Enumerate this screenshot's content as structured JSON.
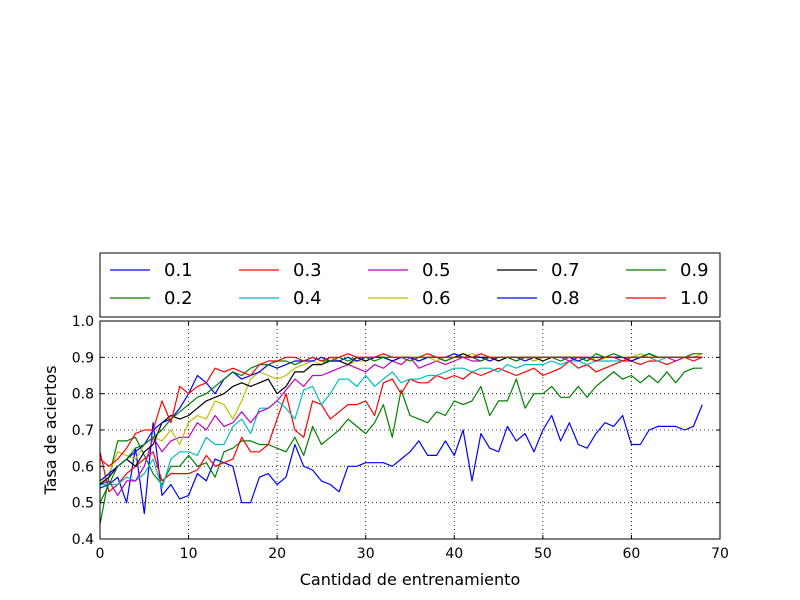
{
  "chart_data": {
    "type": "line",
    "xlabel": "Cantidad de entrenamiento",
    "ylabel": "Tasa de aciertos",
    "xlim": [
      0,
      70
    ],
    "ylim": [
      0.4,
      1.0
    ],
    "xticks": [
      "0",
      "10",
      "20",
      "30",
      "40",
      "50",
      "60",
      "70"
    ],
    "yticks": [
      "0.4",
      "0.5",
      "0.6",
      "0.7",
      "0.8",
      "0.9",
      "1.0"
    ],
    "grid": true,
    "legend": {
      "placement": "top",
      "columns": 5
    },
    "series": [
      {
        "name": "0.1",
        "color": "#0000ff",
        "values": [
          0.54,
          0.55,
          0.57,
          0.5,
          0.65,
          0.47,
          0.72,
          0.52,
          0.55,
          0.51,
          0.52,
          0.58,
          0.56,
          0.62,
          0.61,
          0.6,
          0.5,
          0.5,
          0.57,
          0.58,
          0.55,
          0.57,
          0.66,
          0.6,
          0.59,
          0.56,
          0.55,
          0.53,
          0.6,
          0.6,
          0.61,
          0.61,
          0.61,
          0.6,
          0.62,
          0.64,
          0.67,
          0.63,
          0.63,
          0.67,
          0.63,
          0.7,
          0.56,
          0.69,
          0.65,
          0.64,
          0.71,
          0.67,
          0.69,
          0.64,
          0.7,
          0.74,
          0.67,
          0.72,
          0.66,
          0.65,
          0.69,
          0.72,
          0.71,
          0.74,
          0.66,
          0.66,
          0.7,
          0.71,
          0.71,
          0.71,
          0.7,
          0.71,
          0.77
        ]
      },
      {
        "name": "0.2",
        "color": "#008000",
        "values": [
          0.44,
          0.57,
          0.67,
          0.67,
          0.68,
          0.63,
          0.58,
          0.55,
          0.6,
          0.6,
          0.63,
          0.6,
          0.61,
          0.57,
          0.64,
          0.65,
          0.67,
          0.67,
          0.66,
          0.66,
          0.65,
          0.64,
          0.68,
          0.63,
          0.71,
          0.66,
          0.68,
          0.7,
          0.73,
          0.71,
          0.69,
          0.72,
          0.77,
          0.68,
          0.81,
          0.74,
          0.73,
          0.72,
          0.75,
          0.74,
          0.78,
          0.77,
          0.78,
          0.82,
          0.74,
          0.78,
          0.78,
          0.84,
          0.76,
          0.8,
          0.8,
          0.82,
          0.79,
          0.79,
          0.82,
          0.79,
          0.82,
          0.84,
          0.86,
          0.84,
          0.85,
          0.83,
          0.85,
          0.83,
          0.86,
          0.83,
          0.86,
          0.87,
          0.87
        ]
      },
      {
        "name": "0.3",
        "color": "#ff0000",
        "values": [
          0.64,
          0.53,
          0.55,
          0.58,
          0.6,
          0.62,
          0.64,
          0.56,
          0.58,
          0.58,
          0.58,
          0.59,
          0.63,
          0.6,
          0.61,
          0.62,
          0.68,
          0.64,
          0.64,
          0.66,
          0.73,
          0.8,
          0.7,
          0.68,
          0.78,
          0.77,
          0.73,
          0.75,
          0.77,
          0.77,
          0.78,
          0.74,
          0.83,
          0.84,
          0.8,
          0.84,
          0.83,
          0.83,
          0.85,
          0.84,
          0.85,
          0.84,
          0.86,
          0.85,
          0.86,
          0.87,
          0.86,
          0.85,
          0.86,
          0.87,
          0.85,
          0.86,
          0.87,
          0.89,
          0.87,
          0.88,
          0.86,
          0.87,
          0.88,
          0.89,
          0.89,
          0.88,
          0.89,
          0.89,
          0.88,
          0.89,
          0.9,
          0.89,
          0.9
        ]
      },
      {
        "name": "0.4",
        "color": "#00bfbf",
        "values": [
          0.55,
          0.55,
          0.55,
          0.57,
          0.56,
          0.58,
          0.62,
          0.54,
          0.62,
          0.64,
          0.64,
          0.63,
          0.68,
          0.66,
          0.66,
          0.71,
          0.73,
          0.69,
          0.76,
          0.76,
          0.78,
          0.76,
          0.73,
          0.81,
          0.82,
          0.77,
          0.8,
          0.84,
          0.84,
          0.82,
          0.85,
          0.82,
          0.84,
          0.86,
          0.83,
          0.84,
          0.84,
          0.85,
          0.85,
          0.86,
          0.87,
          0.87,
          0.86,
          0.87,
          0.87,
          0.86,
          0.88,
          0.87,
          0.88,
          0.88,
          0.88,
          0.89,
          0.88,
          0.89,
          0.89,
          0.88,
          0.89,
          0.89,
          0.89,
          0.89,
          0.9,
          0.9,
          0.9,
          0.89,
          0.9,
          0.9,
          0.9,
          0.9,
          0.9
        ]
      },
      {
        "name": "0.5",
        "color": "#bf00bf",
        "values": [
          0.55,
          0.56,
          0.52,
          0.56,
          0.56,
          0.6,
          0.68,
          0.64,
          0.67,
          0.68,
          0.68,
          0.72,
          0.7,
          0.74,
          0.71,
          0.72,
          0.75,
          0.72,
          0.75,
          0.76,
          0.78,
          0.81,
          0.84,
          0.82,
          0.85,
          0.85,
          0.86,
          0.87,
          0.88,
          0.87,
          0.86,
          0.88,
          0.87,
          0.89,
          0.88,
          0.9,
          0.87,
          0.88,
          0.89,
          0.88,
          0.89,
          0.9,
          0.89,
          0.89,
          0.9,
          0.89,
          0.9,
          0.89,
          0.9,
          0.89,
          0.9,
          0.9,
          0.9,
          0.89,
          0.9,
          0.9,
          0.89,
          0.9,
          0.9,
          0.9,
          0.89,
          0.9,
          0.9,
          0.9,
          0.9,
          0.89,
          0.9,
          0.9,
          0.9
        ]
      },
      {
        "name": "0.6",
        "color": "#bfbf00",
        "values": [
          0.55,
          0.58,
          0.64,
          0.63,
          0.62,
          0.66,
          0.68,
          0.67,
          0.7,
          0.66,
          0.72,
          0.74,
          0.73,
          0.78,
          0.77,
          0.73,
          0.78,
          0.84,
          0.86,
          0.85,
          0.84,
          0.85,
          0.87,
          0.88,
          0.89,
          0.88,
          0.9,
          0.89,
          0.88,
          0.89,
          0.89,
          0.9,
          0.9,
          0.89,
          0.9,
          0.89,
          0.9,
          0.9,
          0.89,
          0.9,
          0.9,
          0.9,
          0.91,
          0.9,
          0.89,
          0.9,
          0.9,
          0.9,
          0.9,
          0.89,
          0.9,
          0.9,
          0.9,
          0.9,
          0.9,
          0.89,
          0.9,
          0.9,
          0.9,
          0.9,
          0.9,
          0.91,
          0.9,
          0.9,
          0.9,
          0.9,
          0.9,
          0.9,
          0.91
        ]
      },
      {
        "name": "0.7",
        "color": "#000000",
        "values": [
          0.55,
          0.57,
          0.6,
          0.62,
          0.6,
          0.64,
          0.66,
          0.72,
          0.74,
          0.73,
          0.74,
          0.76,
          0.78,
          0.79,
          0.8,
          0.82,
          0.83,
          0.82,
          0.83,
          0.84,
          0.8,
          0.82,
          0.86,
          0.86,
          0.88,
          0.88,
          0.89,
          0.89,
          0.88,
          0.9,
          0.89,
          0.9,
          0.9,
          0.89,
          0.9,
          0.9,
          0.89,
          0.9,
          0.9,
          0.89,
          0.9,
          0.91,
          0.9,
          0.9,
          0.9,
          0.89,
          0.9,
          0.9,
          0.9,
          0.9,
          0.89,
          0.9,
          0.9,
          0.9,
          0.9,
          0.9,
          0.89,
          0.9,
          0.9,
          0.9,
          0.89,
          0.9,
          0.91,
          0.9,
          0.9,
          0.9,
          0.9,
          0.9,
          0.9
        ]
      },
      {
        "name": "0.8",
        "color": "#0000ff",
        "values": [
          0.56,
          0.58,
          0.6,
          0.62,
          0.64,
          0.66,
          0.7,
          0.72,
          0.73,
          0.76,
          0.8,
          0.85,
          0.83,
          0.8,
          0.84,
          0.86,
          0.84,
          0.85,
          0.86,
          0.88,
          0.87,
          0.88,
          0.89,
          0.89,
          0.89,
          0.9,
          0.89,
          0.89,
          0.9,
          0.89,
          0.9,
          0.9,
          0.9,
          0.89,
          0.9,
          0.9,
          0.89,
          0.9,
          0.9,
          0.9,
          0.91,
          0.9,
          0.9,
          0.9,
          0.89,
          0.9,
          0.9,
          0.9,
          0.89,
          0.9,
          0.9,
          0.9,
          0.9,
          0.9,
          0.89,
          0.9,
          0.9,
          0.9,
          0.9,
          0.9,
          0.89,
          0.9,
          0.91,
          0.9,
          0.9,
          0.9,
          0.9,
          0.9,
          0.9
        ]
      },
      {
        "name": "0.9",
        "color": "#008000",
        "values": [
          0.5,
          0.55,
          0.6,
          0.62,
          0.65,
          0.66,
          0.68,
          0.7,
          0.73,
          0.75,
          0.77,
          0.79,
          0.8,
          0.82,
          0.84,
          0.86,
          0.85,
          0.87,
          0.88,
          0.88,
          0.89,
          0.89,
          0.88,
          0.89,
          0.9,
          0.89,
          0.89,
          0.9,
          0.89,
          0.9,
          0.9,
          0.89,
          0.9,
          0.9,
          0.9,
          0.89,
          0.9,
          0.9,
          0.9,
          0.89,
          0.9,
          0.9,
          0.9,
          0.89,
          0.9,
          0.9,
          0.9,
          0.89,
          0.9,
          0.9,
          0.9,
          0.9,
          0.89,
          0.9,
          0.9,
          0.89,
          0.91,
          0.9,
          0.91,
          0.9,
          0.9,
          0.9,
          0.91,
          0.9,
          0.9,
          0.9,
          0.9,
          0.91,
          0.91
        ]
      },
      {
        "name": "1.0",
        "color": "#ff0000",
        "values": [
          0.62,
          0.6,
          0.62,
          0.65,
          0.69,
          0.7,
          0.7,
          0.78,
          0.72,
          0.82,
          0.8,
          0.82,
          0.83,
          0.87,
          0.86,
          0.87,
          0.86,
          0.85,
          0.88,
          0.89,
          0.89,
          0.9,
          0.9,
          0.89,
          0.9,
          0.89,
          0.9,
          0.9,
          0.91,
          0.9,
          0.9,
          0.9,
          0.91,
          0.9,
          0.9,
          0.9,
          0.9,
          0.91,
          0.9,
          0.9,
          0.9,
          0.9,
          0.9,
          0.91,
          0.9,
          0.9,
          0.9,
          0.9,
          0.9,
          0.9,
          0.9,
          0.9,
          0.9,
          0.9,
          0.9,
          0.9,
          0.89,
          0.9,
          0.9,
          0.89,
          0.9,
          0.9,
          0.9,
          0.9,
          0.9,
          0.9,
          0.9,
          0.9,
          0.9
        ]
      }
    ]
  }
}
